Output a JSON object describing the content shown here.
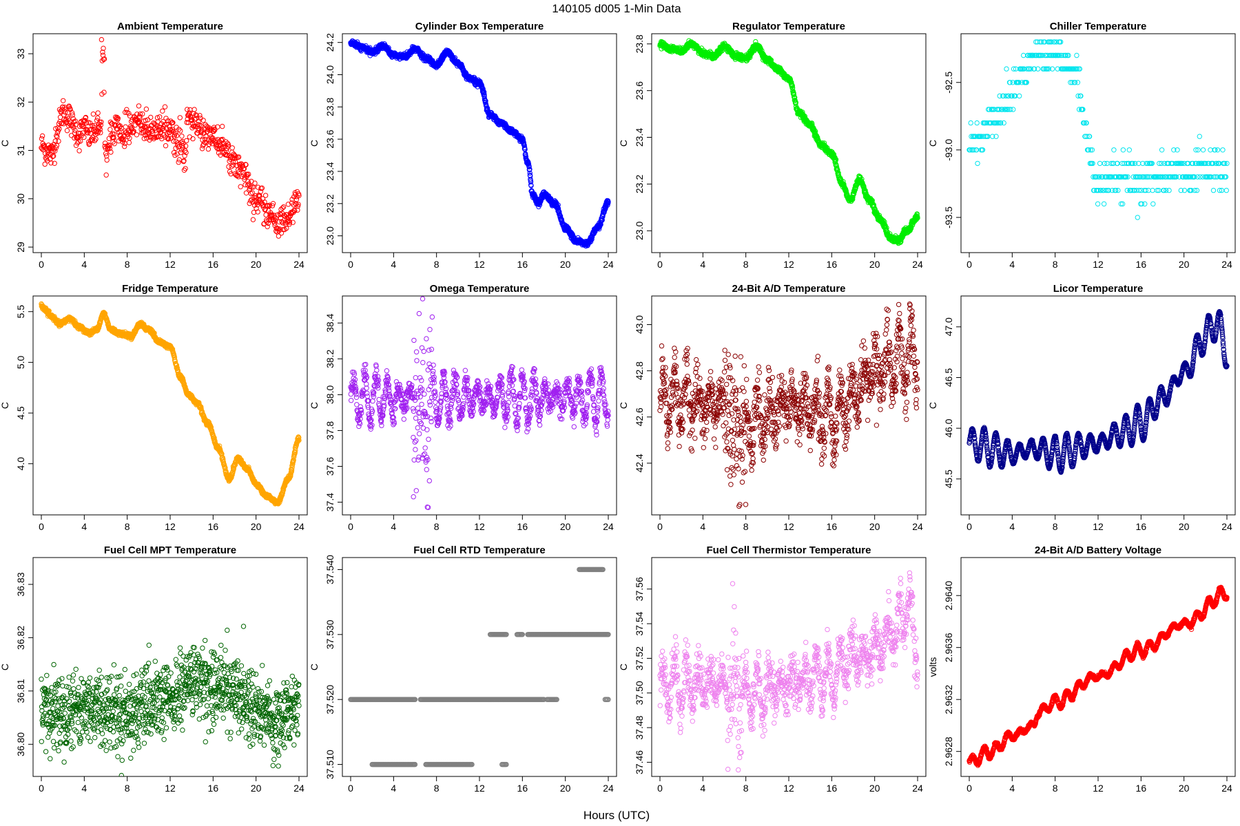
{
  "figure": {
    "title": "140105   d005   1-Min Data",
    "xlabel": "Hours (UTC)"
  },
  "chart_data": [
    {
      "type": "scatter",
      "title": "Ambient Temperature",
      "ylabel": "C",
      "color": "#ff0000",
      "xlim": [
        0,
        24
      ],
      "ylim": [
        29,
        33.3
      ],
      "xticks": [
        0,
        4,
        8,
        12,
        16,
        20,
        24
      ],
      "yticks": [
        29,
        30,
        31,
        32,
        33
      ],
      "yformat": 0,
      "style": "noisy",
      "keypoints": [
        [
          0,
          31.1
        ],
        [
          0.5,
          31.0
        ],
        [
          1,
          30.9
        ],
        [
          1.5,
          31.4
        ],
        [
          2,
          31.8
        ],
        [
          2.5,
          31.7
        ],
        [
          3,
          31.5
        ],
        [
          3.5,
          31.3
        ],
        [
          4,
          31.5
        ],
        [
          4.5,
          31.3
        ],
        [
          5,
          31.4
        ],
        [
          5.5,
          31.5
        ],
        [
          5.7,
          32.4
        ],
        [
          6,
          30.8
        ],
        [
          6.5,
          31.3
        ],
        [
          7,
          31.6
        ],
        [
          7.5,
          31.2
        ],
        [
          8,
          31.5
        ],
        [
          9,
          31.6
        ],
        [
          10,
          31.4
        ],
        [
          11,
          31.4
        ],
        [
          12,
          31.5
        ],
        [
          12.5,
          31.2
        ],
        [
          13,
          31.1
        ],
        [
          13.4,
          30.8
        ],
        [
          13.6,
          31.7
        ],
        [
          14,
          31.6
        ],
        [
          15,
          31.4
        ],
        [
          16,
          31.3
        ],
        [
          17,
          31.0
        ],
        [
          18,
          30.8
        ],
        [
          19,
          30.4
        ],
        [
          20,
          30.0
        ],
        [
          21,
          29.7
        ],
        [
          22,
          29.5
        ],
        [
          23,
          29.6
        ],
        [
          24,
          30.0
        ]
      ],
      "noise": 0.15,
      "n": 720,
      "spikes": [
        [
          5.6,
          5.9,
          32.1,
          33.3
        ]
      ]
    },
    {
      "type": "scatter",
      "title": "Cylinder Box Temperature",
      "ylabel": "C",
      "color": "#0000ff",
      "xlim": [
        0,
        24
      ],
      "ylim": [
        22.93,
        24.22
      ],
      "xticks": [
        0,
        4,
        8,
        12,
        16,
        20,
        24
      ],
      "yticks": [
        23.0,
        23.2,
        23.4,
        23.6,
        23.8,
        24.0,
        24.2
      ],
      "yformat": 1,
      "style": "smooth",
      "keypoints": [
        [
          0,
          24.2
        ],
        [
          1,
          24.17
        ],
        [
          2,
          24.14
        ],
        [
          3,
          24.18
        ],
        [
          4,
          24.12
        ],
        [
          5,
          24.11
        ],
        [
          6,
          24.16
        ],
        [
          7,
          24.1
        ],
        [
          8,
          24.06
        ],
        [
          9,
          24.14
        ],
        [
          10,
          24.07
        ],
        [
          11,
          23.98
        ],
        [
          12,
          23.95
        ],
        [
          13,
          23.75
        ],
        [
          14,
          23.7
        ],
        [
          15,
          23.65
        ],
        [
          16,
          23.6
        ],
        [
          16.5,
          23.45
        ],
        [
          17,
          23.25
        ],
        [
          17.5,
          23.2
        ],
        [
          18,
          23.26
        ],
        [
          19,
          23.2
        ],
        [
          20,
          23.05
        ],
        [
          21,
          22.97
        ],
        [
          22,
          22.95
        ],
        [
          23,
          23.05
        ],
        [
          24,
          23.21
        ]
      ],
      "noise": 0.008,
      "n": 1440
    },
    {
      "type": "scatter",
      "title": "Regulator Temperature",
      "ylabel": "C",
      "color": "#00ee00",
      "xlim": [
        0,
        24
      ],
      "ylim": [
        22.93,
        23.82
      ],
      "xticks": [
        0,
        4,
        8,
        12,
        16,
        20,
        24
      ],
      "yticks": [
        23.0,
        23.2,
        23.4,
        23.6,
        23.8
      ],
      "yformat": 1,
      "style": "smooth",
      "keypoints": [
        [
          0,
          23.8
        ],
        [
          1,
          23.78
        ],
        [
          2,
          23.77
        ],
        [
          3,
          23.8
        ],
        [
          4,
          23.76
        ],
        [
          5,
          23.75
        ],
        [
          6,
          23.79
        ],
        [
          7,
          23.75
        ],
        [
          8,
          23.74
        ],
        [
          9,
          23.79
        ],
        [
          10,
          23.73
        ],
        [
          11,
          23.69
        ],
        [
          12,
          23.65
        ],
        [
          13,
          23.5
        ],
        [
          14,
          23.45
        ],
        [
          15,
          23.37
        ],
        [
          16,
          23.33
        ],
        [
          17,
          23.2
        ],
        [
          17.7,
          23.13
        ],
        [
          18.6,
          23.22
        ],
        [
          19.5,
          23.13
        ],
        [
          20.5,
          23.05
        ],
        [
          21.5,
          22.97
        ],
        [
          22.2,
          22.96
        ],
        [
          23,
          23.0
        ],
        [
          24,
          23.06
        ]
      ],
      "noise": 0.006,
      "n": 1440
    },
    {
      "type": "scatter",
      "title": "Chiller Temperature",
      "ylabel": "C",
      "color": "#00e5ee",
      "xlim": [
        0,
        24
      ],
      "ylim": [
        -93.72,
        -92.18
      ],
      "xticks": [
        0,
        4,
        8,
        12,
        16,
        20,
        24
      ],
      "yticks": [
        -93.5,
        -93.0,
        -92.5
      ],
      "yformat": 1,
      "style": "quantized",
      "quantum": 0.1,
      "keypoints": [
        [
          0,
          -92.95
        ],
        [
          1,
          -92.9
        ],
        [
          2,
          -92.8
        ],
        [
          3,
          -92.7
        ],
        [
          4,
          -92.55
        ],
        [
          5,
          -92.4
        ],
        [
          6,
          -92.3
        ],
        [
          7,
          -92.3
        ],
        [
          8,
          -92.3
        ],
        [
          9,
          -92.35
        ],
        [
          10,
          -92.45
        ],
        [
          11,
          -92.9
        ],
        [
          12,
          -93.3
        ],
        [
          13,
          -93.2
        ],
        [
          14,
          -93.2
        ],
        [
          15,
          -93.2
        ],
        [
          16,
          -93.25
        ],
        [
          17,
          -93.2
        ],
        [
          18,
          -93.2
        ],
        [
          19,
          -93.15
        ],
        [
          20,
          -93.15
        ],
        [
          21,
          -93.15
        ],
        [
          22,
          -93.1
        ],
        [
          23,
          -93.15
        ],
        [
          24,
          -93.2
        ]
      ],
      "noise": 0.08,
      "n": 500
    },
    {
      "type": "scatter",
      "title": "Fridge Temperature",
      "ylabel": "C",
      "color": "#ffa500",
      "xlim": [
        0,
        24
      ],
      "ylim": [
        3.55,
        5.6
      ],
      "xticks": [
        0,
        4,
        8,
        12,
        16,
        20,
        24
      ],
      "yticks": [
        4.0,
        4.5,
        5.0,
        5.5
      ],
      "yformat": 1,
      "style": "smooth",
      "keypoints": [
        [
          0,
          5.55
        ],
        [
          1,
          5.45
        ],
        [
          1.7,
          5.38
        ],
        [
          2.7,
          5.43
        ],
        [
          3.5,
          5.35
        ],
        [
          4.5,
          5.29
        ],
        [
          5.2,
          5.33
        ],
        [
          5.8,
          5.48
        ],
        [
          6.5,
          5.32
        ],
        [
          7.5,
          5.28
        ],
        [
          8.4,
          5.26
        ],
        [
          9.2,
          5.38
        ],
        [
          10,
          5.32
        ],
        [
          11,
          5.2
        ],
        [
          12,
          5.15
        ],
        [
          13,
          4.85
        ],
        [
          13.7,
          4.68
        ],
        [
          14.5,
          4.6
        ],
        [
          15.5,
          4.4
        ],
        [
          16.5,
          4.15
        ],
        [
          17.5,
          3.85
        ],
        [
          18.3,
          4.05
        ],
        [
          19.2,
          3.95
        ],
        [
          20,
          3.8
        ],
        [
          21,
          3.68
        ],
        [
          22,
          3.62
        ],
        [
          23,
          3.85
        ],
        [
          24,
          4.25
        ]
      ],
      "noise": 0.01,
      "n": 1440
    },
    {
      "type": "scatter",
      "title": "Omega Temperature",
      "ylabel": "C",
      "color": "#a020f0",
      "xlim": [
        0,
        24
      ],
      "ylim": [
        37.36,
        38.52
      ],
      "xticks": [
        0,
        4,
        8,
        12,
        16,
        20,
        24
      ],
      "yticks": [
        37.4,
        37.6,
        37.8,
        38.0,
        38.2,
        38.4
      ],
      "yformat": 1,
      "style": "oscillating",
      "base": 37.98,
      "amp": 0.14,
      "period": 1.05,
      "noise": 0.03,
      "n": 1100,
      "burst": [
        [
          5.8,
          7.6,
          0.45
        ]
      ]
    },
    {
      "type": "scatter",
      "title": "24-Bit A/D Temperature",
      "ylabel": "C",
      "color": "#8b0000",
      "xlim": [
        0,
        24
      ],
      "ylim": [
        42.2,
        43.1
      ],
      "xticks": [
        0,
        4,
        8,
        12,
        16,
        20,
        24
      ],
      "yticks": [
        42.4,
        42.6,
        42.8,
        43.0
      ],
      "yformat": 1,
      "style": "oscillating",
      "base": 42.67,
      "amp": 0.12,
      "period": 1.1,
      "noise": 0.06,
      "n": 1200,
      "trend": [
        [
          0,
          42.68
        ],
        [
          6,
          42.65
        ],
        [
          7,
          42.55
        ],
        [
          12,
          42.65
        ],
        [
          16,
          42.6
        ],
        [
          18,
          42.68
        ],
        [
          20,
          42.8
        ],
        [
          22,
          42.85
        ],
        [
          24,
          42.85
        ]
      ],
      "burst": [
        [
          6,
          8,
          0.3
        ]
      ]
    },
    {
      "type": "scatter",
      "title": "Licor Temperature",
      "ylabel": "C",
      "color": "#00008b",
      "xlim": [
        0,
        24
      ],
      "ylim": [
        45.2,
        47.25
      ],
      "xticks": [
        0,
        4,
        8,
        12,
        16,
        20,
        24
      ],
      "yticks": [
        45.5,
        46.0,
        46.5,
        47.0
      ],
      "yformat": 1,
      "style": "oscillating-smooth",
      "base": 45.9,
      "amp": 0.18,
      "period": 1.1,
      "noise": 0.005,
      "n": 1440,
      "trend": [
        [
          0,
          45.85
        ],
        [
          4,
          45.75
        ],
        [
          6,
          45.8
        ],
        [
          8,
          45.75
        ],
        [
          12,
          45.85
        ],
        [
          14,
          45.95
        ],
        [
          16,
          46.05
        ],
        [
          18,
          46.3
        ],
        [
          20,
          46.55
        ],
        [
          22,
          46.9
        ],
        [
          23,
          47.05
        ],
        [
          24,
          46.75
        ]
      ]
    },
    {
      "type": "scatter",
      "title": "Fuel Cell MPT Temperature",
      "ylabel": "C",
      "color": "#006400",
      "xlim": [
        0,
        24
      ],
      "ylim": [
        36.795,
        36.834
      ],
      "xticks": [
        0,
        4,
        8,
        12,
        16,
        20,
        24
      ],
      "yticks": [
        36.8,
        36.81,
        36.82,
        36.83
      ],
      "yformat": 2,
      "style": "noisy",
      "keypoints": [
        [
          0,
          36.806
        ],
        [
          4,
          36.807
        ],
        [
          8,
          36.806
        ],
        [
          12,
          36.808
        ],
        [
          14,
          36.812
        ],
        [
          16,
          36.811
        ],
        [
          18,
          36.81
        ],
        [
          20,
          36.807
        ],
        [
          22,
          36.804
        ],
        [
          24,
          36.808
        ]
      ],
      "noise": 0.0035,
      "n": 1200
    },
    {
      "type": "scatter",
      "title": "Fuel Cell RTD Temperature",
      "ylabel": "C",
      "color": "#808080",
      "xlim": [
        0,
        24
      ],
      "ylim": [
        37.509,
        37.541
      ],
      "xticks": [
        0,
        4,
        8,
        12,
        16,
        20,
        24
      ],
      "yticks": [
        37.51,
        37.52,
        37.53,
        37.54
      ],
      "yformat": 3,
      "style": "levels",
      "levels": [
        {
          "y": 37.52,
          "segments": [
            [
              0,
              6
            ],
            [
              6.5,
              13
            ],
            [
              13,
              18
            ],
            [
              18.3,
              19.2
            ],
            [
              23.7,
              24
            ]
          ]
        },
        {
          "y": 37.51,
          "segments": [
            [
              2,
              6
            ],
            [
              7,
              11.3
            ],
            [
              14.1,
              14.5
            ]
          ]
        },
        {
          "y": 37.53,
          "segments": [
            [
              13,
              14.5
            ],
            [
              15.5,
              16
            ],
            [
              16.5,
              24
            ]
          ]
        },
        {
          "y": 37.54,
          "segments": [
            [
              21.3,
              23.5
            ]
          ]
        }
      ],
      "n": 600
    },
    {
      "type": "scatter",
      "title": "Fuel Cell Thermistor Temperature",
      "ylabel": "C",
      "color": "#ee82ee",
      "xlim": [
        0,
        24
      ],
      "ylim": [
        37.455,
        37.575
      ],
      "xticks": [
        0,
        4,
        8,
        12,
        16,
        20,
        24
      ],
      "yticks": [
        37.46,
        37.48,
        37.5,
        37.52,
        37.54,
        37.56
      ],
      "yformat": 2,
      "style": "oscillating",
      "base": 37.505,
      "amp": 0.015,
      "period": 1.1,
      "noise": 0.006,
      "n": 1100,
      "trend": [
        [
          0,
          37.505
        ],
        [
          6,
          37.505
        ],
        [
          8,
          37.5
        ],
        [
          12,
          37.505
        ],
        [
          16,
          37.51
        ],
        [
          18,
          37.52
        ],
        [
          20,
          37.525
        ],
        [
          22,
          37.535
        ],
        [
          23,
          37.55
        ],
        [
          24,
          37.525
        ]
      ],
      "burst": [
        [
          6.3,
          7.6,
          0.04
        ]
      ]
    },
    {
      "type": "scatter",
      "title": "24-Bit A/D Battery Voltage",
      "ylabel": "volts",
      "color": "#ff0000",
      "xlim": [
        0,
        24
      ],
      "ylim": [
        2.96265,
        2.96425
      ],
      "xticks": [
        0,
        4,
        8,
        12,
        16,
        20,
        24
      ],
      "yticks": [
        2.9628,
        2.9632,
        2.9636,
        2.964
      ],
      "yformat": 4,
      "style": "oscillating-smooth",
      "base": 2.9628,
      "amp": 5e-05,
      "period": 1.1,
      "noise": 6e-06,
      "n": 1440,
      "trend": [
        [
          0,
          2.96272
        ],
        [
          2,
          2.9628
        ],
        [
          4,
          2.96292
        ],
        [
          6,
          2.963
        ],
        [
          6.4,
          2.9631
        ],
        [
          8,
          2.96318
        ],
        [
          12,
          2.96338
        ],
        [
          16,
          2.96358
        ],
        [
          20,
          2.96378
        ],
        [
          24,
          2.96402
        ]
      ]
    }
  ]
}
